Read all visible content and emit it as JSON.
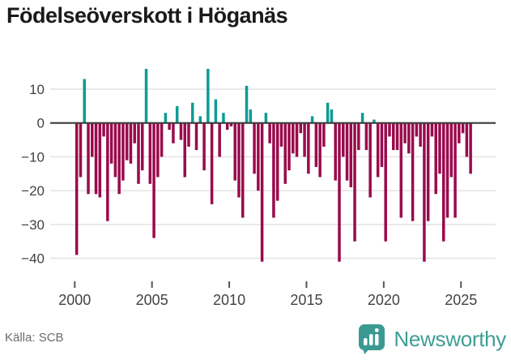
{
  "title": "Födelseöverskott i Höganäs",
  "source": "Källa: SCB",
  "logo": {
    "text": "Newsworthy",
    "icon": "bar-chart-exclamation-badge"
  },
  "colors": {
    "positive_bar": "#0e9c94",
    "negative_bar": "#9a0a4c",
    "zero_line": "#3b3b3b",
    "gridline": "#e2e2e2",
    "axis_label": "#424242",
    "title_text": "#1a1a1a",
    "source_text": "#6b6b6b",
    "logo_teal": "#3f9d95"
  },
  "chart_data": {
    "type": "bar",
    "title": "Födelseöverskott i Höganäs",
    "xlabel": "",
    "ylabel": "",
    "period": "quarterly",
    "start_year": 2000,
    "start_quarter": 1,
    "x_ticks": [
      2000,
      2005,
      2010,
      2015,
      2020,
      2025
    ],
    "y_ticks": [
      10,
      0,
      -10,
      -20,
      -30,
      -40
    ],
    "ylim": [
      -43,
      17
    ],
    "grid": "horizontal",
    "legend": "none",
    "values": [
      -39,
      -16,
      13,
      -21,
      -10,
      -21,
      -22,
      -4,
      -29,
      -12,
      -16,
      -21,
      -17,
      -11,
      -12,
      -6,
      -18,
      -14,
      16,
      -18,
      -34,
      -16,
      -10,
      3,
      -2,
      -6,
      5,
      -5,
      -16,
      -7,
      6,
      -8,
      2,
      -14,
      16,
      -24,
      7,
      -10,
      3,
      -2,
      -1,
      -17,
      -22,
      -28,
      11,
      4,
      -15,
      -20,
      -41,
      3,
      -6,
      -28,
      -23,
      -7,
      -18,
      -14,
      -9,
      -10,
      -3,
      -10,
      -15,
      2,
      -13,
      -16,
      -7,
      6,
      4,
      -17,
      -41,
      -10,
      -17,
      -19,
      -35,
      -8,
      3,
      -8,
      -22,
      1,
      -16,
      -13,
      -35,
      -4,
      -8,
      -8,
      -28,
      -6,
      -9,
      -29,
      -4,
      -7,
      -41,
      -29,
      -4,
      -21,
      -15,
      -35,
      -28,
      -16,
      -28,
      -6,
      -3,
      -10,
      -15
    ]
  }
}
